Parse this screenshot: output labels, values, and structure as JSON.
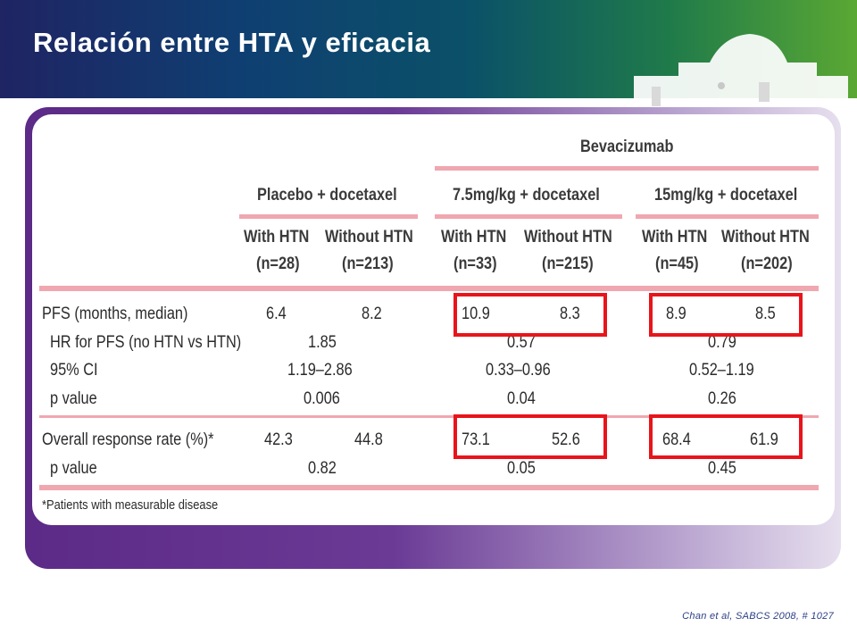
{
  "slide": {
    "title": "Relación entre HTA y eficacia",
    "citation": "Chan et al, SABCS 2008, # 1027"
  },
  "table": {
    "bevacizumab_header": "Bevacizumab",
    "group_headers": [
      "Placebo + docetaxel",
      "7.5mg/kg + docetaxel",
      "15mg/kg + docetaxel"
    ],
    "subheaders": [
      {
        "line1": "With HTN",
        "line2": "(n=28)"
      },
      {
        "line1": "Without HTN",
        "line2": "(n=213)"
      },
      {
        "line1": "With HTN",
        "line2": "(n=33)"
      },
      {
        "line1": "Without HTN",
        "line2": "(n=215)"
      },
      {
        "line1": "With HTN",
        "line2": "(n=45)"
      },
      {
        "line1": "Without HTN",
        "line2": "(n=202)"
      }
    ],
    "pfs": {
      "label": "PFS (months, median)",
      "values": [
        "6.4",
        "8.2",
        "10.9",
        "8.3",
        "8.9",
        "8.5"
      ],
      "hr_label": "HR for PFS (no HTN vs HTN)",
      "hr": [
        "1.85",
        "0.57",
        "0.79"
      ],
      "ci_label": "95% CI",
      "ci": [
        "1.19–2.86",
        "0.33–0.96",
        "0.52–1.19"
      ],
      "p_label": "p value",
      "p": [
        "0.006",
        "0.04",
        "0.26"
      ]
    },
    "orr": {
      "label": "Overall response rate (%)*",
      "values": [
        "42.3",
        "44.8",
        "73.1",
        "52.6",
        "68.4",
        "61.9"
      ],
      "p_label": "p value",
      "p": [
        "0.82",
        "0.05",
        "0.45"
      ]
    },
    "footnote": "*Patients with measurable disease"
  }
}
